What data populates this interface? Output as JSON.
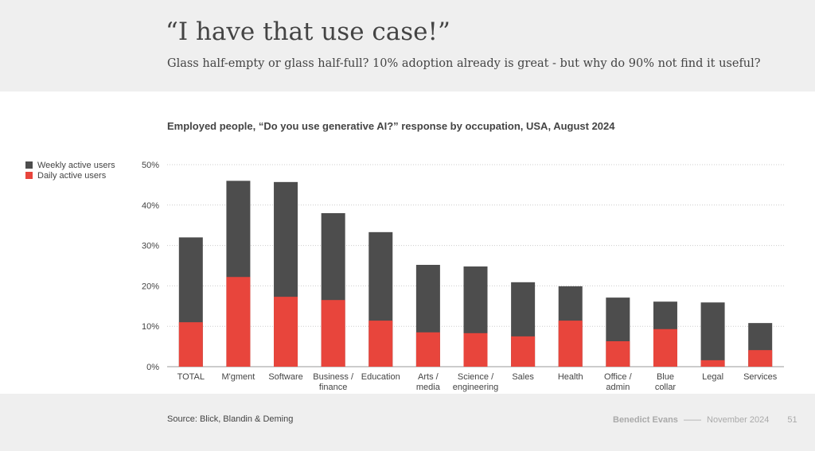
{
  "header": {
    "title": "“I have that use case!”",
    "subtitle": "Glass half-empty or glass half-full? 10% adoption already is great - but why do 90% not find it useful?"
  },
  "footer": {
    "source": "Source: Blick, Blandin & Deming",
    "author": "Benedict Evans",
    "separator": "——",
    "date": "November 2024",
    "page": "51"
  },
  "colors": {
    "weekly": "#4d4d4d",
    "daily": "#e8453c"
  },
  "chart_data": {
    "type": "bar",
    "stacked": "overlay",
    "title": "Employed people, “Do you use generative AI?” response by occupation, USA, August 2024",
    "categories": [
      [
        "TOTAL"
      ],
      [
        "M'gment"
      ],
      [
        "Software"
      ],
      [
        "Business /",
        "finance"
      ],
      [
        "Education"
      ],
      [
        "Arts /",
        "media"
      ],
      [
        "Science /",
        "engineering"
      ],
      [
        "Sales"
      ],
      [
        "Health"
      ],
      [
        "Office /",
        "admin"
      ],
      [
        "Blue",
        "collar"
      ],
      [
        "Legal"
      ],
      [
        "Services"
      ]
    ],
    "series": [
      {
        "name": "Weekly active users",
        "values": [
          32,
          46,
          45.7,
          38,
          33.3,
          25.2,
          24.8,
          20.9,
          19.9,
          17.1,
          16.1,
          15.9,
          10.8
        ]
      },
      {
        "name": "Daily active users",
        "values": [
          11,
          22.2,
          17.3,
          16.5,
          11.4,
          8.5,
          8.3,
          7.5,
          11.4,
          6.3,
          9.3,
          1.6,
          4.1
        ]
      }
    ],
    "yticks": [
      "0%",
      "10%",
      "20%",
      "30%",
      "40%",
      "50%"
    ],
    "ylim": [
      0,
      50
    ],
    "grid": true,
    "legend": "top-left"
  }
}
